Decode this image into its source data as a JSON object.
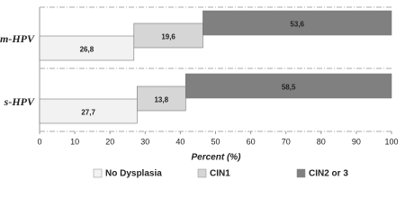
{
  "chart_data": {
    "type": "stacked-barh",
    "categories": [
      "m-HPV",
      "s-HPV"
    ],
    "series": [
      {
        "name": "No Dysplasia",
        "color": "#f2f2f2",
        "values": [
          26.8,
          27.7
        ],
        "value_labels": [
          "26,8",
          "27,7"
        ]
      },
      {
        "name": "CIN1",
        "color": "#d6d6d6",
        "values": [
          19.6,
          13.8
        ],
        "value_labels": [
          "19,6",
          "13,8"
        ]
      },
      {
        "name": "CIN2 or 3",
        "color": "#808080",
        "values": [
          53.6,
          58.5
        ],
        "value_labels": [
          "53,6",
          "58,5"
        ]
      }
    ],
    "xlabel": "Percent (%)",
    "xlim": [
      0,
      100
    ],
    "xticks": [
      0,
      10,
      20,
      30,
      40,
      50,
      60,
      70,
      80,
      90,
      100
    ]
  }
}
